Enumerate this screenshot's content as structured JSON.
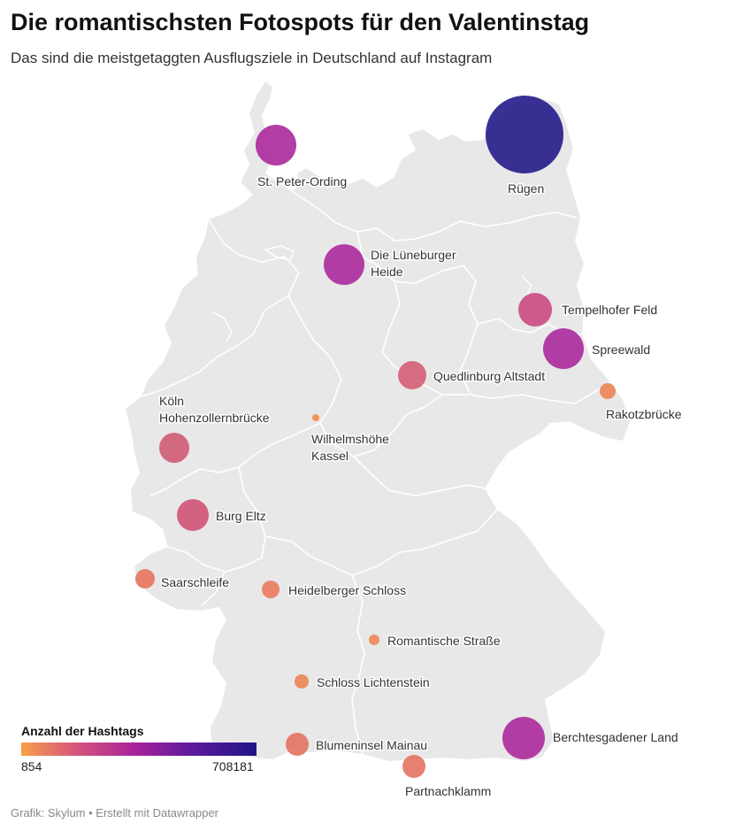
{
  "header": {
    "title": "Die romantischsten Fotospots für den Valentinstag",
    "subtitle": "Das sind die meistgetaggten Ausflugsziele in Deutschland auf Instagram"
  },
  "legend": {
    "title": "Anzahl der Hashtags",
    "min": "854",
    "max": "708181",
    "colors": [
      "#f7a04a",
      "#d8587a",
      "#a8239a",
      "#5e1a9e",
      "#1f1486"
    ]
  },
  "footer": "Grafik: Skylum • Erstellt mit Datawrapper",
  "map": {
    "land_color": "#e8e8e8",
    "border_color": "#ffffff"
  },
  "locations": [
    {
      "name": "Rügen",
      "lines": [
        "Rügen"
      ],
      "color": "#1f1486"
    },
    {
      "name": "St. Peter-Ording",
      "lines": [
        "St. Peter-Ording"
      ],
      "color": "#a8239a"
    },
    {
      "name": "Die Lüneburger Heide",
      "lines": [
        "Die Lüneburger",
        "Heide"
      ],
      "color": "#a8239a"
    },
    {
      "name": "Tempelhofer Feld",
      "lines": [
        "Tempelhofer Feld"
      ],
      "color": "#c8457c"
    },
    {
      "name": "Spreewald",
      "lines": [
        "Spreewald"
      ],
      "color": "#a8239a"
    },
    {
      "name": "Quedlinburg Altstadt",
      "lines": [
        "Quedlinburg Altstadt"
      ],
      "color": "#d35a72"
    },
    {
      "name": "Rakotzbrücke",
      "lines": [
        "Rakotzbrücke"
      ],
      "color": "#ec7f50"
    },
    {
      "name": "Köln Hohenzollernbrücke",
      "lines": [
        "Köln",
        "Hohenzollernbrücke"
      ],
      "color": "#cf5572"
    },
    {
      "name": "Wilhelmshöhe Kassel",
      "lines": [
        "Wilhelmshöhe",
        "Kassel"
      ],
      "color": "#f28a44"
    },
    {
      "name": "Burg Eltz",
      "lines": [
        "Burg Eltz"
      ],
      "color": "#cf4f72"
    },
    {
      "name": "Saarschleife",
      "lines": [
        "Saarschleife"
      ],
      "color": "#e6705a"
    },
    {
      "name": "Heidelberger Schloss",
      "lines": [
        "Heidelberger Schloss"
      ],
      "color": "#e9785a"
    },
    {
      "name": "Romantische Straße",
      "lines": [
        "Romantische Straße"
      ],
      "color": "#ee8450"
    },
    {
      "name": "Schloss Lichtenstein",
      "lines": [
        "Schloss Lichtenstein"
      ],
      "color": "#ec8150"
    },
    {
      "name": "Blumeninsel Mainau",
      "lines": [
        "Blumeninsel Mainau"
      ],
      "color": "#e0705e"
    },
    {
      "name": "Berchtesgadener Land",
      "lines": [
        "Berchtesgadener Land"
      ],
      "color": "#a8239a"
    },
    {
      "name": "Partnachklamm",
      "lines": [
        "Partnachklamm"
      ],
      "color": "#e46e5c"
    }
  ]
}
